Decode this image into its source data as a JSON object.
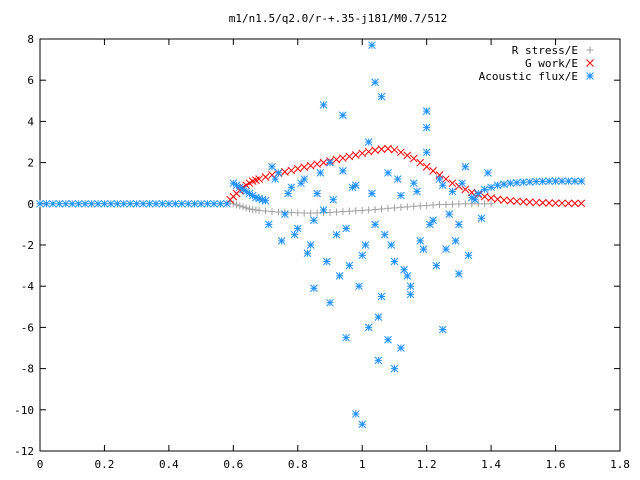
{
  "chart_data": {
    "type": "scatter",
    "title": "m1/n1.5/q2.0/r-+.35-j181/M0.7/512",
    "xlabel": "",
    "ylabel": "",
    "xlim": [
      0,
      1.8
    ],
    "ylim": [
      -12,
      8
    ],
    "xticks": [
      "0",
      "0.2",
      "0.4",
      "0.6",
      "0.8",
      "1",
      "1.2",
      "1.4",
      "1.6",
      "1.8"
    ],
    "yticks": [
      "-12",
      "-10",
      "-8",
      "-6",
      "-4",
      "-2",
      "0",
      "2",
      "4",
      "6",
      "8"
    ],
    "grid": false,
    "legend_position": "top-right",
    "series": [
      {
        "name": "R stress/E",
        "marker": "plus",
        "color": "#a0a0a0",
        "x": [
          0.59,
          0.6,
          0.61,
          0.62,
          0.63,
          0.64,
          0.65,
          0.66,
          0.67,
          0.68,
          0.7,
          0.72,
          0.74,
          0.76,
          0.78,
          0.8,
          0.82,
          0.84,
          0.86,
          0.88,
          0.9,
          0.92,
          0.94,
          0.96,
          0.98,
          1.0,
          1.02,
          1.04,
          1.06,
          1.08,
          1.1,
          1.12,
          1.14,
          1.16,
          1.18,
          1.2,
          1.22,
          1.24,
          1.26,
          1.28,
          1.3,
          1.32,
          1.34,
          1.36,
          1.38,
          1.4
        ],
        "y": [
          0.1,
          0.0,
          -0.05,
          -0.1,
          -0.15,
          -0.2,
          -0.25,
          -0.28,
          -0.3,
          -0.32,
          -0.35,
          -0.38,
          -0.4,
          -0.42,
          -0.43,
          -0.44,
          -0.45,
          -0.45,
          -0.44,
          -0.43,
          -0.42,
          -0.4,
          -0.38,
          -0.36,
          -0.34,
          -0.32,
          -0.3,
          -0.28,
          -0.25,
          -0.22,
          -0.2,
          -0.17,
          -0.15,
          -0.12,
          -0.1,
          -0.08,
          -0.06,
          -0.04,
          -0.03,
          -0.02,
          -0.01,
          0.0,
          0.0,
          0.0,
          0.0,
          0.0
        ]
      },
      {
        "name": "G work/E",
        "marker": "cross",
        "color": "#ff0000",
        "x": [
          0.59,
          0.6,
          0.61,
          0.62,
          0.63,
          0.64,
          0.65,
          0.66,
          0.67,
          0.68,
          0.7,
          0.72,
          0.74,
          0.76,
          0.78,
          0.8,
          0.82,
          0.84,
          0.86,
          0.88,
          0.9,
          0.92,
          0.94,
          0.96,
          0.98,
          1.0,
          1.02,
          1.04,
          1.06,
          1.08,
          1.1,
          1.12,
          1.14,
          1.16,
          1.18,
          1.2,
          1.22,
          1.24,
          1.26,
          1.28,
          1.3,
          1.32,
          1.34,
          1.36,
          1.38,
          1.4,
          1.42,
          1.44,
          1.46,
          1.48,
          1.5,
          1.52,
          1.54,
          1.56,
          1.58,
          1.6,
          1.62,
          1.64,
          1.66,
          1.68
        ],
        "y": [
          0.2,
          0.35,
          0.5,
          0.65,
          0.8,
          0.9,
          1.0,
          1.1,
          1.15,
          1.2,
          1.3,
          1.4,
          1.48,
          1.55,
          1.62,
          1.7,
          1.78,
          1.85,
          1.93,
          2.0,
          2.08,
          2.15,
          2.22,
          2.3,
          2.37,
          2.45,
          2.53,
          2.6,
          2.65,
          2.68,
          2.62,
          2.5,
          2.35,
          2.2,
          2.0,
          1.8,
          1.6,
          1.4,
          1.2,
          1.0,
          0.85,
          0.7,
          0.55,
          0.45,
          0.35,
          0.28,
          0.22,
          0.18,
          0.15,
          0.12,
          0.1,
          0.08,
          0.06,
          0.05,
          0.04,
          0.03,
          0.03,
          0.02,
          0.02,
          0.02
        ]
      },
      {
        "name": "Acoustic flux/E",
        "marker": "star",
        "color": "#1e90ff",
        "x": [
          0.0,
          0.02,
          0.04,
          0.06,
          0.08,
          0.1,
          0.12,
          0.14,
          0.16,
          0.18,
          0.2,
          0.22,
          0.24,
          0.26,
          0.28,
          0.3,
          0.32,
          0.34,
          0.36,
          0.38,
          0.4,
          0.42,
          0.44,
          0.46,
          0.48,
          0.5,
          0.52,
          0.54,
          0.56,
          0.58,
          0.6,
          0.61,
          0.62,
          0.63,
          0.64,
          0.65,
          0.66,
          0.67,
          0.68,
          0.69,
          0.7,
          0.72,
          0.74,
          0.76,
          0.78,
          0.8,
          0.82,
          0.84,
          0.86,
          0.88,
          0.9,
          0.92,
          0.94,
          0.96,
          0.98,
          1.0,
          1.02,
          1.04,
          1.06,
          1.08,
          1.1,
          1.12,
          1.14,
          1.16,
          1.18,
          1.2,
          1.22,
          1.24,
          1.26,
          1.28,
          1.3,
          1.32,
          1.34,
          1.36,
          1.38,
          1.4,
          1.42,
          1.44,
          1.46,
          1.48,
          1.5,
          1.52,
          1.54,
          1.56,
          1.58,
          1.6,
          1.62,
          1.64,
          1.66,
          1.68,
          0.71,
          0.73,
          0.75,
          0.77,
          0.79,
          0.81,
          0.83,
          0.85,
          0.87,
          0.89,
          0.91,
          0.93,
          0.95,
          0.97,
          0.99,
          1.01,
          1.03,
          1.05,
          1.07,
          1.09,
          1.11,
          1.13,
          1.15,
          1.17,
          1.19,
          1.21,
          1.23,
          1.25,
          1.27,
          1.29,
          1.31,
          1.33,
          1.35,
          1.37,
          1.39,
          0.88,
          0.94,
          1.04,
          1.03,
          1.06,
          1.02,
          1.2,
          1.1,
          1.0,
          1.05,
          1.2,
          0.95,
          0.9,
          1.15,
          0.85,
          0.98,
          1.08,
          1.12,
          1.25,
          1.3
        ],
        "y": [
          0,
          0,
          0,
          0,
          0,
          0,
          0,
          0,
          0,
          0,
          0,
          0,
          0,
          0,
          0,
          0,
          0,
          0,
          0,
          0,
          0,
          0,
          0,
          0,
          0,
          0,
          0,
          0,
          0,
          0,
          1.0,
          0.9,
          0.8,
          0.7,
          0.6,
          0.5,
          0.4,
          0.3,
          0.25,
          0.2,
          0.15,
          1.8,
          1.5,
          -0.5,
          0.8,
          -1.2,
          1.2,
          -2.0,
          0.5,
          -0.3,
          2.0,
          -1.5,
          1.6,
          -3.0,
          0.9,
          -2.5,
          3.0,
          -1.0,
          -4.5,
          1.5,
          -2.8,
          0.4,
          -3.5,
          1.0,
          -1.8,
          2.5,
          -0.8,
          1.2,
          -2.2,
          0.6,
          -1.0,
          1.8,
          0.3,
          0.5,
          0.7,
          0.8,
          0.9,
          0.95,
          1.0,
          1.02,
          1.05,
          1.06,
          1.08,
          1.09,
          1.1,
          1.1,
          1.1,
          1.1,
          1.1,
          1.1,
          -1.0,
          1.2,
          -1.8,
          0.5,
          -1.5,
          1.0,
          -2.4,
          -0.8,
          1.5,
          -2.8,
          0.2,
          -3.5,
          -1.2,
          0.8,
          -4.0,
          -2.0,
          0.5,
          -5.5,
          -1.5,
          -2.0,
          1.2,
          -3.2,
          -4.0,
          0.6,
          -2.2,
          -1.0,
          -3.0,
          0.9,
          -0.5,
          -1.8,
          1.0,
          -2.5,
          0.2,
          -0.7,
          1.5,
          4.8,
          4.3,
          5.9,
          7.7,
          5.2,
          -6.0,
          4.5,
          -8.0,
          -10.7,
          -7.6,
          3.7,
          -6.5,
          -4.8,
          -4.4,
          -4.1,
          -10.2,
          -6.6,
          -7.0,
          -6.1,
          -3.4
        ]
      }
    ]
  }
}
